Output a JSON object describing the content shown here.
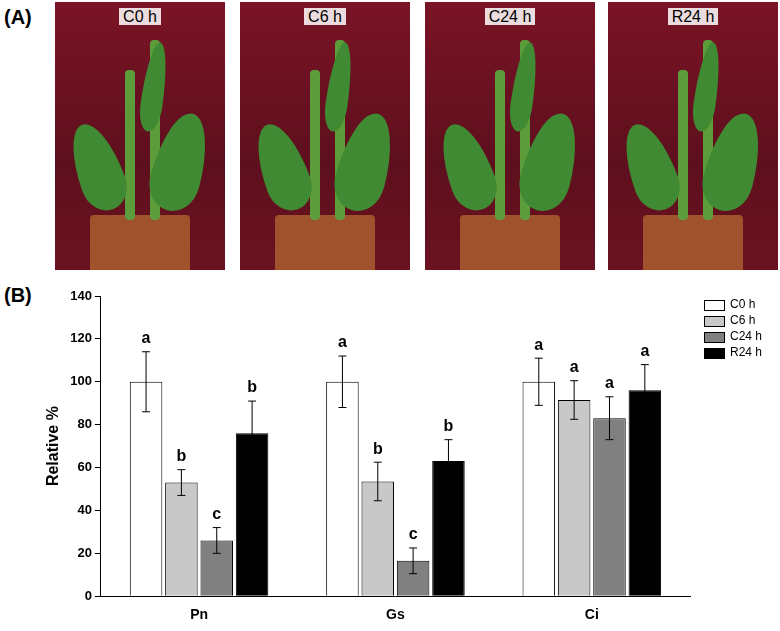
{
  "panel_a": {
    "label": "(A)",
    "photo_labels": [
      "C0 h",
      "C6 h",
      "C24 h",
      "R24 h"
    ]
  },
  "panel_b": {
    "label": "(B)"
  },
  "chart_data": {
    "type": "bar",
    "y_label": "Relative %",
    "categories": [
      "Pn",
      "Gs",
      "Ci"
    ],
    "series": [
      {
        "name": "C0 h",
        "color": "#ffffff",
        "values": [
          100,
          100,
          100
        ],
        "errors": [
          14,
          12,
          11
        ],
        "letters": [
          "a",
          "a",
          "a"
        ]
      },
      {
        "name": "C6 h",
        "color": "#c8c8c8",
        "values": [
          53,
          53.5,
          91.5
        ],
        "errors": [
          6,
          9,
          9
        ],
        "letters": [
          "b",
          "b",
          "a"
        ]
      },
      {
        "name": "C24 h",
        "color": "#808080",
        "values": [
          26,
          16.5,
          83
        ],
        "errors": [
          6,
          6,
          10
        ],
        "letters": [
          "c",
          "c",
          "a"
        ]
      },
      {
        "name": "R24 h",
        "color": "#000000",
        "values": [
          76,
          63,
          96
        ],
        "errors": [
          15,
          10,
          12
        ],
        "letters": [
          "b",
          "b",
          "a"
        ]
      }
    ],
    "ylim": [
      0,
      140
    ],
    "yticks": [
      0,
      20,
      40,
      60,
      80,
      100,
      120,
      140
    ],
    "grid": false,
    "legend": "right"
  }
}
